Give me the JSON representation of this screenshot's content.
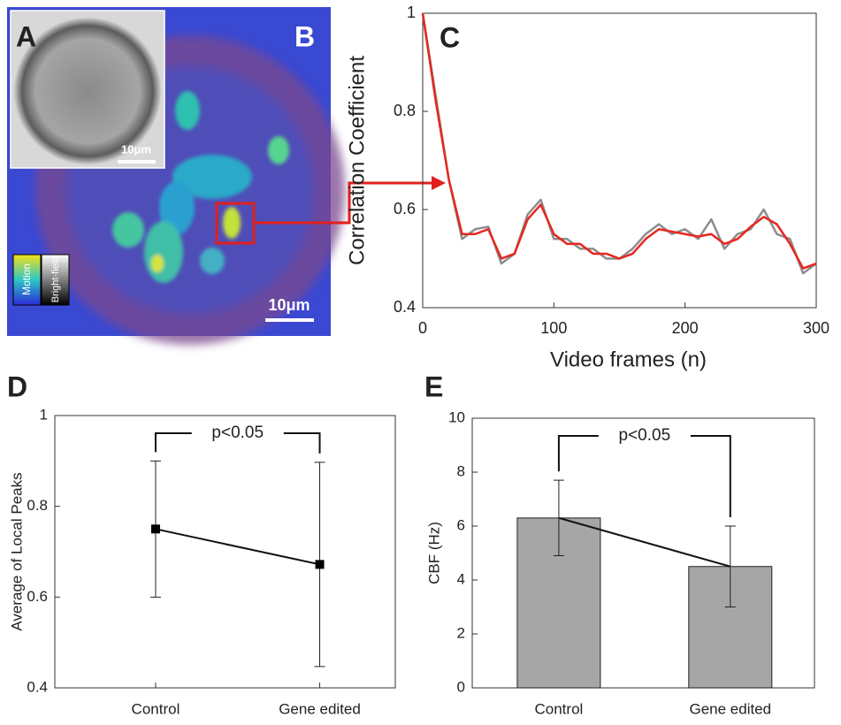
{
  "images": {
    "panel_a_label": "A",
    "panel_b_label": "B",
    "inset_scale": "10μm",
    "main_scale": "10μm",
    "colorbar_motion": "Motion",
    "colorbar_brightfield": "Bright-field"
  },
  "chart_data": [
    {
      "type": "line",
      "panel": "C",
      "y_label": "Correlation Coefficient",
      "x_label": "Video frames (n)",
      "x": [
        0,
        10,
        20,
        30,
        40,
        50,
        60,
        70,
        80,
        90,
        100,
        110,
        120,
        130,
        140,
        150,
        160,
        170,
        180,
        190,
        200,
        210,
        220,
        230,
        240,
        250,
        260,
        270,
        280,
        290,
        300
      ],
      "series": [
        {
          "color": "#8c8c8c",
          "values": [
            1.0,
            0.83,
            0.66,
            0.54,
            0.56,
            0.565,
            0.49,
            0.51,
            0.59,
            0.62,
            0.54,
            0.54,
            0.52,
            0.52,
            0.5,
            0.5,
            0.52,
            0.55,
            0.57,
            0.55,
            0.56,
            0.54,
            0.58,
            0.52,
            0.55,
            0.56,
            0.6,
            0.55,
            0.54,
            0.47,
            0.49
          ]
        },
        {
          "color": "#e8261f",
          "values": [
            1.0,
            0.82,
            0.66,
            0.55,
            0.55,
            0.56,
            0.5,
            0.51,
            0.58,
            0.61,
            0.55,
            0.53,
            0.53,
            0.51,
            0.51,
            0.5,
            0.51,
            0.54,
            0.56,
            0.555,
            0.55,
            0.545,
            0.55,
            0.53,
            0.54,
            0.565,
            0.585,
            0.57,
            0.53,
            0.48,
            0.49
          ]
        }
      ],
      "xlim": [
        0,
        300
      ],
      "xticks": [
        0,
        100,
        200,
        300
      ],
      "ylim": [
        0.4,
        1
      ],
      "yticks": [
        0.4,
        0.6,
        0.8,
        1
      ]
    },
    {
      "type": "line",
      "panel": "D",
      "y_label": "Average of Local Peaks",
      "annotation": "p<0.05",
      "categories": [
        "Control",
        "Gene edited"
      ],
      "values": [
        0.75,
        0.672
      ],
      "errors": [
        0.15,
        0.225
      ],
      "color": "#000000",
      "ylim": [
        0.4,
        1
      ],
      "yticks": [
        0.4,
        0.6,
        0.8,
        1
      ]
    },
    {
      "type": "bar",
      "panel": "E",
      "y_label": "CBF (Hz)",
      "annotation": "p<0.05",
      "categories": [
        "Control",
        "Gene edited"
      ],
      "values": [
        6.3,
        4.5
      ],
      "errors": [
        1.4,
        1.5
      ],
      "color": "#a6a6a6",
      "connect": true,
      "ylim": [
        0,
        10
      ],
      "yticks": [
        0,
        2,
        4,
        6,
        8,
        10
      ]
    }
  ]
}
